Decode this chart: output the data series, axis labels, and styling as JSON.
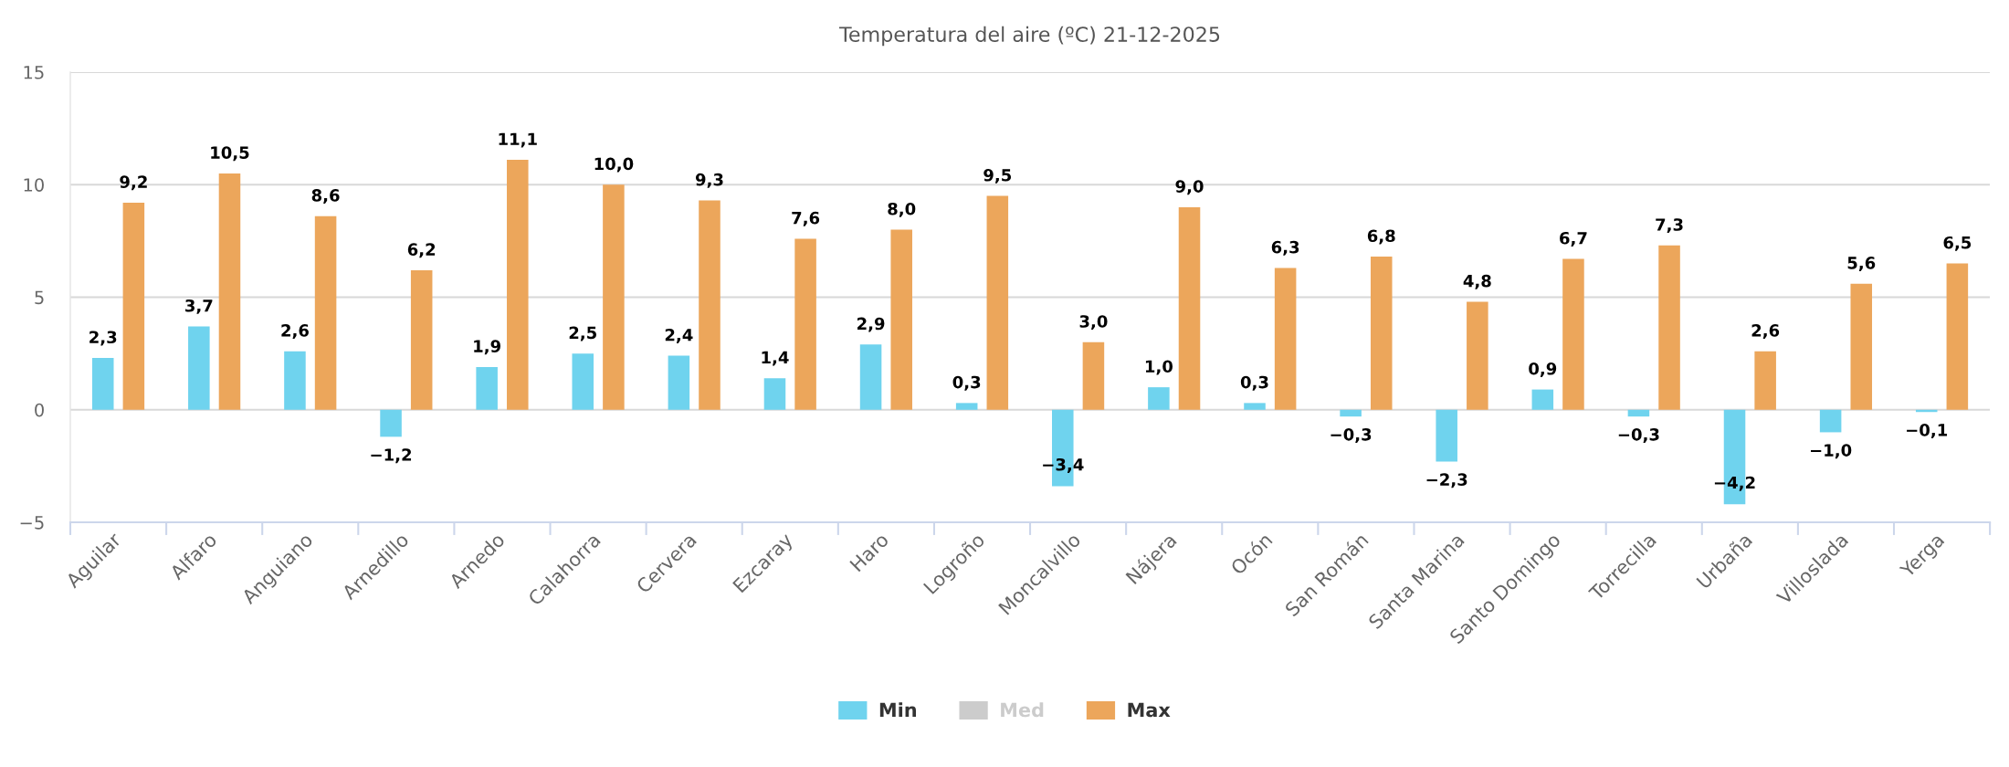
{
  "chart_data": {
    "type": "bar",
    "title": "Temperatura del aire (ºC) 21-12-2025",
    "categories": [
      "Aguilar",
      "Alfaro",
      "Anguiano",
      "Arnedillo",
      "Arnedo",
      "Calahorra",
      "Cervera",
      "Ezcaray",
      "Haro",
      "Logroño",
      "Moncalvillo",
      "Nájera",
      "Ocón",
      "San Román",
      "Santa Marina",
      "Santo Domingo",
      "Torrecilla",
      "Urbaña",
      "Villoslada",
      "Yerga"
    ],
    "series": [
      {
        "name": "Min",
        "color": "#6fd3ee",
        "values": [
          2.3,
          3.7,
          2.6,
          -1.2,
          1.9,
          2.5,
          2.4,
          1.4,
          2.9,
          0.3,
          -3.4,
          1.0,
          0.3,
          -0.3,
          -2.3,
          0.9,
          -0.3,
          -4.2,
          -1.0,
          -0.1
        ],
        "value_labels": [
          "2,3",
          "3,7",
          "2,6",
          "−1,2",
          "1,9",
          "2,5",
          "2,4",
          "1,4",
          "2,9",
          "0,3",
          "−3,4",
          "1,0",
          "0,3",
          "−0,3",
          "−2,3",
          "0,9",
          "−0,3",
          "−4,2",
          "−1,0",
          "−0,1"
        ]
      },
      {
        "name": "Med",
        "color": "#cccccc",
        "values": [
          null,
          null,
          null,
          null,
          null,
          null,
          null,
          null,
          null,
          null,
          null,
          null,
          null,
          null,
          null,
          null,
          null,
          null,
          null,
          null
        ]
      },
      {
        "name": "Max",
        "color": "#eca65b",
        "values": [
          9.2,
          10.5,
          8.6,
          6.2,
          11.1,
          10.0,
          9.3,
          7.6,
          8.0,
          9.5,
          3.0,
          9.0,
          6.3,
          6.8,
          4.8,
          6.7,
          7.3,
          2.6,
          5.6,
          6.5
        ],
        "value_labels": [
          "9,2",
          "10,5",
          "8,6",
          "6,2",
          "11,1",
          "10,0",
          "9,3",
          "7,6",
          "8,0",
          "9,5",
          "3,0",
          "9,0",
          "6,3",
          "6,8",
          "4,8",
          "6,7",
          "7,3",
          "2,6",
          "5,6",
          "6,5"
        ]
      }
    ],
    "ylim": [
      -5,
      15
    ],
    "yticks": [
      {
        "value": -5,
        "label": "−5"
      },
      0,
      5,
      10,
      15
    ],
    "grid": "y",
    "legend": "bottom"
  }
}
